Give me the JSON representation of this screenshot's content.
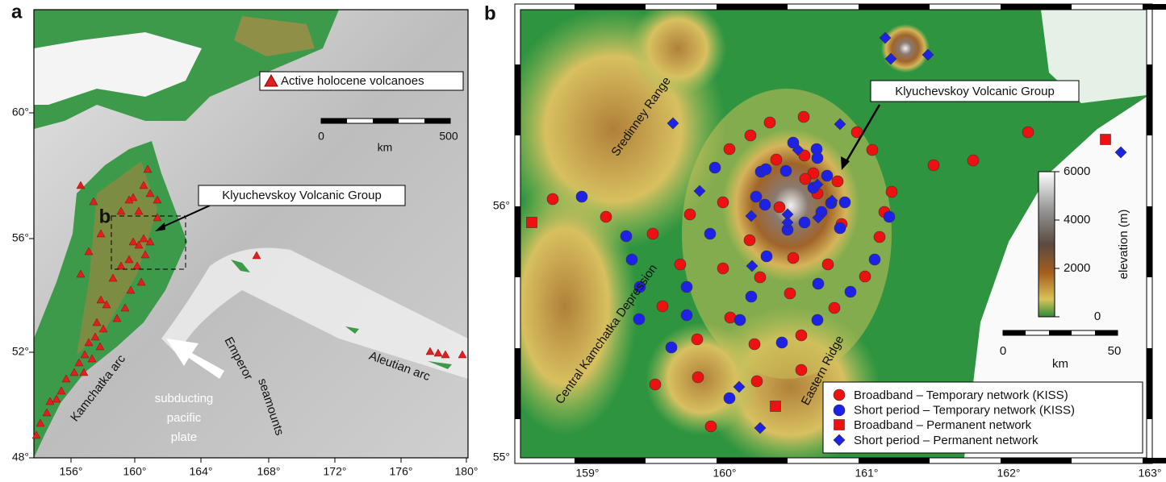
{
  "panel_a": {
    "label": "a",
    "yticks": [
      "60°",
      "56°",
      "52°",
      "48°"
    ],
    "xticks": [
      "156°",
      "160°",
      "164°",
      "168°",
      "172°",
      "176°",
      "180°"
    ],
    "legend": "Active holocene volcanoes",
    "scale_bar": {
      "start": "0",
      "end": "500",
      "unit": "km"
    },
    "annotations": {
      "group": "Klyuchevskoy Volcanic Group",
      "inset": "b",
      "kamchatka_arc": "Kamchatka arc",
      "emperor": [
        "Emperor",
        "seamounts"
      ],
      "plate": [
        "subducting",
        "pacific",
        "plate"
      ],
      "aleutian": "Aleutian arc"
    }
  },
  "panel_b": {
    "label": "b",
    "yticks": [
      "56°",
      "55°"
    ],
    "xticks": [
      "159°",
      "160°",
      "161°",
      "162°",
      "163°"
    ],
    "annotations": {
      "group": "Klyuchevskoy Volcanic Group",
      "sredinney": "Sredinney Range",
      "depression": "Central Kamchatka Depression",
      "eastern": "Eastern Ridge"
    },
    "colorbar": {
      "title": "elevation (m)",
      "ticks": [
        "6000",
        "4000",
        "2000",
        "0"
      ]
    },
    "scale_bar": {
      "start": "0",
      "end": "50",
      "unit": "km"
    },
    "legend": [
      "Broadband – Temporary network (KISS)",
      "Short period – Temporary network (KISS)",
      "Broadband – Permanent network",
      "Short period – Permanent network"
    ]
  }
}
